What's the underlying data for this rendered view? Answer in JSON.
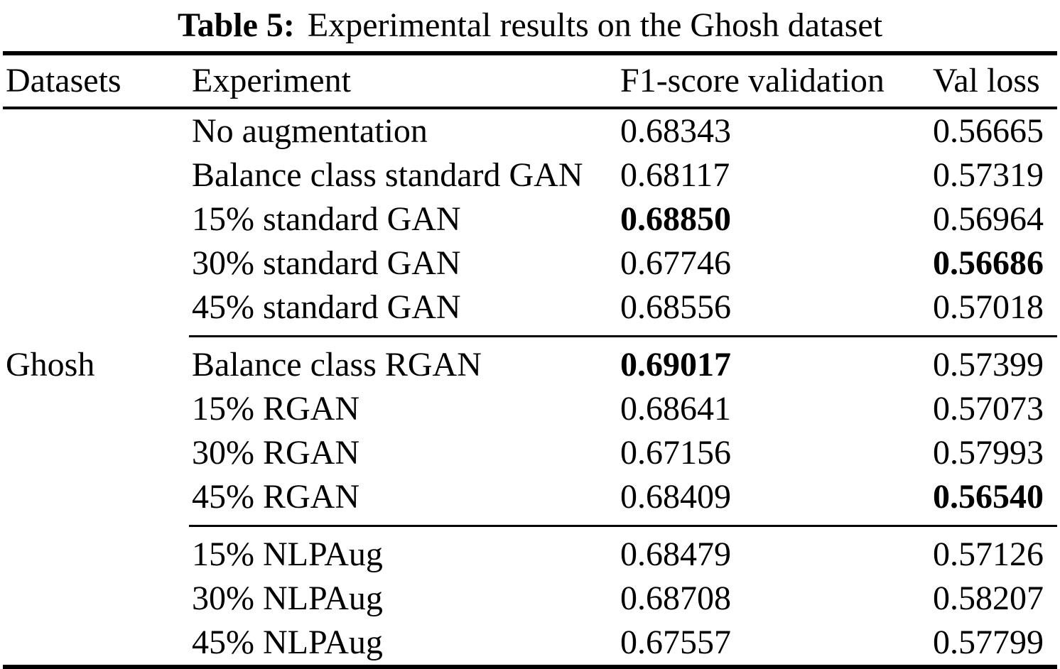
{
  "caption": {
    "label": "Table 5:",
    "text": "Experimental results on the Ghosh dataset"
  },
  "table": {
    "columns": [
      "Datasets",
      "Experiment",
      "F1-score validation",
      "Val loss"
    ],
    "dataset_label": "Ghosh",
    "groups": [
      {
        "rows": [
          {
            "experiment": "No augmentation",
            "f1": "0.68343",
            "f1_bold": false,
            "loss": "0.56665",
            "loss_bold": false
          },
          {
            "experiment": "Balance class standard GAN",
            "f1": "0.68117",
            "f1_bold": false,
            "loss": "0.57319",
            "loss_bold": false
          },
          {
            "experiment": "15% standard GAN",
            "f1": "0.68850",
            "f1_bold": true,
            "loss": "0.56964",
            "loss_bold": false
          },
          {
            "experiment": "30% standard GAN",
            "f1": "0.67746",
            "f1_bold": false,
            "loss": "0.56686",
            "loss_bold": true
          },
          {
            "experiment": "45% standard GAN",
            "f1": "0.68556",
            "f1_bold": false,
            "loss": "0.57018",
            "loss_bold": false
          }
        ]
      },
      {
        "rows": [
          {
            "experiment": "Balance class RGAN",
            "f1": "0.69017",
            "f1_bold": true,
            "loss": "0.57399",
            "loss_bold": false
          },
          {
            "experiment": "15% RGAN",
            "f1": "0.68641",
            "f1_bold": false,
            "loss": "0.57073",
            "loss_bold": false
          },
          {
            "experiment": "30% RGAN",
            "f1": "0.67156",
            "f1_bold": false,
            "loss": "0.57993",
            "loss_bold": false
          },
          {
            "experiment": "45% RGAN",
            "f1": "0.68409",
            "f1_bold": false,
            "loss": "0.56540",
            "loss_bold": true
          }
        ]
      },
      {
        "rows": [
          {
            "experiment": "15% NLPAug",
            "f1": "0.68479",
            "f1_bold": false,
            "loss": "0.57126",
            "loss_bold": false
          },
          {
            "experiment": "30% NLPAug",
            "f1": "0.68708",
            "f1_bold": false,
            "loss": "0.58207",
            "loss_bold": false
          },
          {
            "experiment": "45% NLPAug",
            "f1": "0.67557",
            "f1_bold": false,
            "loss": "0.57799",
            "loss_bold": false
          }
        ]
      }
    ]
  }
}
